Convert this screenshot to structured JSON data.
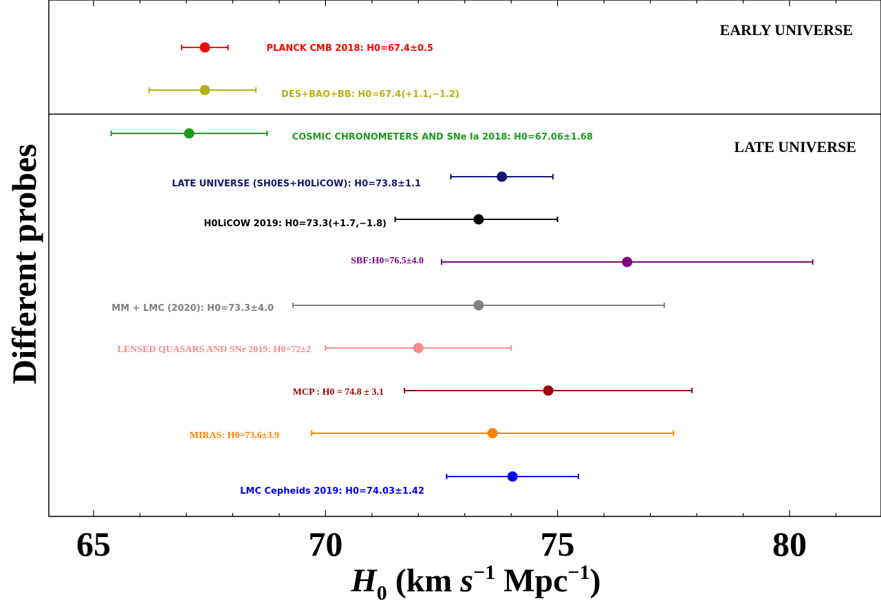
{
  "chart_data": {
    "type": "errorbar",
    "xlabel": {
      "main": "H",
      "sub": "0",
      "units_a": " (km ",
      "s": "s",
      "sup1": "−1",
      "units_b": " Mpc",
      "sup2": "−1",
      "close": ")"
    },
    "ylabel": "Different probes",
    "xlim": [
      64.0,
      82.0
    ],
    "xticks": [
      65,
      70,
      75,
      80
    ],
    "xtick_labels": [
      "65",
      "70",
      "75",
      "80"
    ],
    "x_minor_step": 1,
    "regions": {
      "early": "EARLY UNIVERSE",
      "late": "LATE UNIVERSE"
    },
    "measurements": [
      {
        "label": "PLANCK CMB 2018: H0=67.4±0.5",
        "value": 67.4,
        "err_minus": 0.5,
        "err_plus": 0.5,
        "color": "#ff0000",
        "font": "sans"
      },
      {
        "label": "DES+BAO+BB: H0=67.4(+1.1,−1.2)",
        "value": 67.4,
        "err_minus": 1.2,
        "err_plus": 1.1,
        "color": "#b5b20e",
        "font": "sans"
      },
      {
        "label": "COSMIC CHRONOMETERS AND SNe Ia 2018: H0=67.06±1.68",
        "value": 67.06,
        "err_minus": 1.68,
        "err_plus": 1.68,
        "color": "#1b9a1b",
        "font": "sans"
      },
      {
        "label": "LATE UNIVERSE (SH0ES+H0LiCOW): H0=73.8±1.1",
        "value": 73.8,
        "err_minus": 1.1,
        "err_plus": 1.1,
        "color": "#141470",
        "font": "sans"
      },
      {
        "label": "H0LiCOW 2019: H0=73.3(+1.7,−1.8)",
        "value": 73.3,
        "err_minus": 1.8,
        "err_plus": 1.7,
        "color": "#000000",
        "font": "sans"
      },
      {
        "label": "SBF:H0=76.5±4.0",
        "value": 76.5,
        "err_minus": 4.0,
        "err_plus": 4.0,
        "color": "#800080",
        "font": "serif"
      },
      {
        "label": "MM + LMC (2020): H0=73.3±4.0",
        "value": 73.3,
        "err_minus": 4.0,
        "err_plus": 4.0,
        "color": "#808080",
        "font": "sans"
      },
      {
        "label": "LENSED QUASARS AND SNe 2019: H0=72±2",
        "value": 72.0,
        "err_minus": 2.0,
        "err_plus": 2.0,
        "color": "#f88a8a",
        "font": "serif"
      },
      {
        "label": "MCP : H0 = 74.8 ± 3.1",
        "value": 74.8,
        "err_minus": 3.1,
        "err_plus": 3.1,
        "color": "#a00000",
        "font": "serif"
      },
      {
        "label": "MIRAS: H0=73.6±3.9",
        "value": 73.6,
        "err_minus": 3.9,
        "err_plus": 3.9,
        "color": "#ff8000",
        "font": "serif"
      },
      {
        "label": "LMC Cepheids 2019: H0=74.03±1.42",
        "value": 74.03,
        "err_minus": 1.42,
        "err_plus": 1.42,
        "color": "#0000ff",
        "font": "sans"
      }
    ]
  }
}
